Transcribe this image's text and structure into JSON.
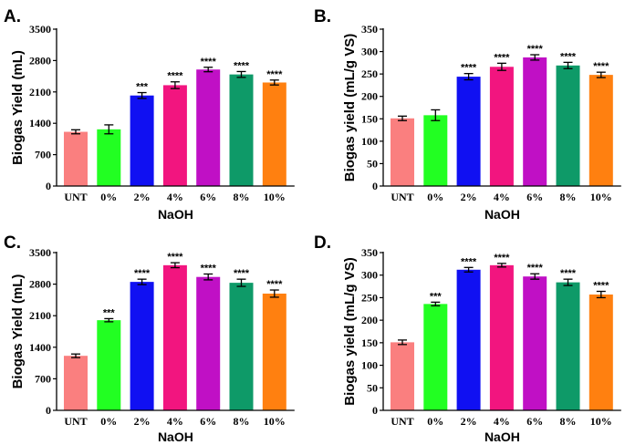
{
  "chart_data": [
    {
      "letter": "A.",
      "type": "bar",
      "ylabel": "Biogas Yield (mL)",
      "xlabel": "NaOH",
      "categories": [
        "UNT",
        "0%",
        "2%",
        "4%",
        "6%",
        "8%",
        "10%"
      ],
      "values": [
        1210,
        1265,
        2020,
        2250,
        2600,
        2490,
        2310
      ],
      "errors": [
        45,
        100,
        65,
        75,
        50,
        65,
        55
      ],
      "significance": [
        "",
        "",
        "***",
        "****",
        "****",
        "****",
        "****"
      ],
      "ylim": [
        0,
        3500
      ],
      "yticks": [
        0,
        700,
        1400,
        2100,
        2800,
        3500
      ]
    },
    {
      "letter": "B.",
      "type": "bar",
      "ylabel": "Biogas yield  (mL/g VS)",
      "xlabel": "NaOH",
      "categories": [
        "UNT",
        "0%",
        "2%",
        "4%",
        "6%",
        "8%",
        "10%"
      ],
      "values": [
        151,
        158,
        244,
        266,
        287,
        269,
        248
      ],
      "errors": [
        5,
        12,
        7,
        8,
        6,
        7,
        6
      ],
      "significance": [
        "",
        "",
        "****",
        "****",
        "****",
        "****",
        "****"
      ],
      "ylim": [
        0,
        350
      ],
      "yticks": [
        0,
        50,
        100,
        150,
        200,
        250,
        300,
        350
      ]
    },
    {
      "letter": "C.",
      "type": "bar",
      "ylabel": "Biogas Yield (mL)",
      "xlabel": "NaOH",
      "categories": [
        "UNT",
        "0%",
        "2%",
        "4%",
        "6%",
        "8%",
        "10%"
      ],
      "values": [
        1210,
        2000,
        2850,
        3220,
        2960,
        2830,
        2590
      ],
      "errors": [
        40,
        35,
        60,
        55,
        65,
        80,
        80
      ],
      "significance": [
        "",
        "***",
        "****",
        "****",
        "****",
        "****",
        "****"
      ],
      "ylim": [
        0,
        3500
      ],
      "yticks": [
        0,
        700,
        1400,
        2100,
        2800,
        3500
      ]
    },
    {
      "letter": "D.",
      "type": "bar",
      "ylabel": "Biogas yield  (mL/g VS)",
      "xlabel": "NaOH",
      "categories": [
        "UNT",
        "0%",
        "2%",
        "4%",
        "6%",
        "8%",
        "10%"
      ],
      "values": [
        151,
        236,
        312,
        322,
        297,
        284,
        257
      ],
      "errors": [
        5,
        4,
        5,
        4,
        6,
        7,
        7
      ],
      "significance": [
        "",
        "***",
        "****",
        "****",
        "****",
        "****",
        "****"
      ],
      "ylim": [
        0,
        350
      ],
      "yticks": [
        0,
        50,
        100,
        150,
        200,
        250,
        300,
        350
      ]
    }
  ],
  "colors": {
    "bars": [
      "#fa7f7f",
      "#22ff22",
      "#1010f2",
      "#f2157f",
      "#c010c5",
      "#0e9a68",
      "#ff8010"
    ]
  }
}
